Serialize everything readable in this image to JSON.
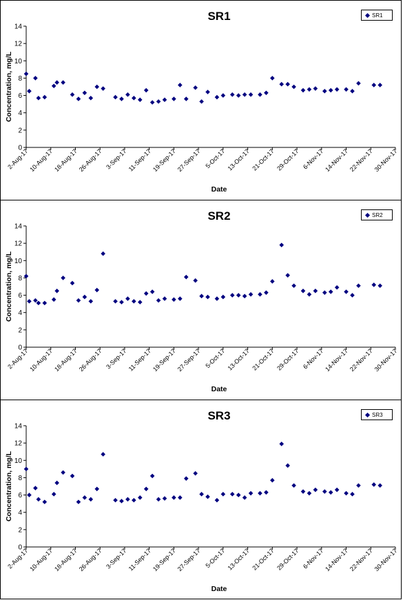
{
  "chart_data": [
    {
      "type": "scatter",
      "title": "SR1",
      "xlabel": "Date",
      "ylabel": "Concentration, mg/L",
      "ylim": [
        0,
        14
      ],
      "yticks": [
        0,
        2,
        4,
        6,
        8,
        10,
        12,
        14
      ],
      "xlim": [
        "2017-08-02",
        "2017-11-30"
      ],
      "xtick_labels": [
        "2-Aug-17",
        "10-Aug-17",
        "18-Aug-17",
        "26-Aug-17",
        "3-Sep-17",
        "11-Sep-17",
        "19-Sep-17",
        "27-Sep-17",
        "5-Oct-17",
        "13-Oct-17",
        "21-Oct-17",
        "29-Oct-17",
        "6-Nov-17",
        "14-Nov-17",
        "22-Nov-17",
        "30-Nov-17"
      ],
      "legend": "top-right",
      "grid": false,
      "marker_color": "#000080",
      "series": [
        {
          "name": "SR1",
          "points": [
            [
              "2017-08-02",
              8.5
            ],
            [
              "2017-08-03",
              6.5
            ],
            [
              "2017-08-05",
              8.0
            ],
            [
              "2017-08-06",
              5.7
            ],
            [
              "2017-08-08",
              5.8
            ],
            [
              "2017-08-11",
              7.1
            ],
            [
              "2017-08-12",
              7.5
            ],
            [
              "2017-08-14",
              7.5
            ],
            [
              "2017-08-17",
              6.1
            ],
            [
              "2017-08-19",
              5.6
            ],
            [
              "2017-08-21",
              6.3
            ],
            [
              "2017-08-23",
              5.7
            ],
            [
              "2017-08-25",
              7.0
            ],
            [
              "2017-08-27",
              6.8
            ],
            [
              "2017-08-31",
              5.8
            ],
            [
              "2017-09-02",
              5.6
            ],
            [
              "2017-09-04",
              6.1
            ],
            [
              "2017-09-06",
              5.7
            ],
            [
              "2017-09-08",
              5.5
            ],
            [
              "2017-09-10",
              6.6
            ],
            [
              "2017-09-12",
              5.2
            ],
            [
              "2017-09-14",
              5.3
            ],
            [
              "2017-09-16",
              5.5
            ],
            [
              "2017-09-19",
              5.6
            ],
            [
              "2017-09-21",
              7.2
            ],
            [
              "2017-09-23",
              5.6
            ],
            [
              "2017-09-26",
              6.9
            ],
            [
              "2017-09-28",
              5.3
            ],
            [
              "2017-09-30",
              6.4
            ],
            [
              "2017-10-03",
              5.8
            ],
            [
              "2017-10-05",
              6.0
            ],
            [
              "2017-10-08",
              6.1
            ],
            [
              "2017-10-10",
              6.0
            ],
            [
              "2017-10-12",
              6.1
            ],
            [
              "2017-10-14",
              6.1
            ],
            [
              "2017-10-17",
              6.1
            ],
            [
              "2017-10-19",
              6.3
            ],
            [
              "2017-10-21",
              8.0
            ],
            [
              "2017-10-24",
              7.3
            ],
            [
              "2017-10-26",
              7.3
            ],
            [
              "2017-10-28",
              7.0
            ],
            [
              "2017-10-31",
              6.6
            ],
            [
              "2017-11-02",
              6.7
            ],
            [
              "2017-11-04",
              6.8
            ],
            [
              "2017-11-07",
              6.5
            ],
            [
              "2017-11-09",
              6.6
            ],
            [
              "2017-11-11",
              6.7
            ],
            [
              "2017-11-14",
              6.7
            ],
            [
              "2017-11-16",
              6.5
            ],
            [
              "2017-11-18",
              7.4
            ],
            [
              "2017-11-23",
              7.2
            ],
            [
              "2017-11-25",
              7.2
            ]
          ]
        }
      ]
    },
    {
      "type": "scatter",
      "title": "SR2",
      "xlabel": "Date",
      "ylabel": "Concentration, mg/L",
      "ylim": [
        0,
        14
      ],
      "yticks": [
        0,
        2,
        4,
        6,
        8,
        10,
        12,
        14
      ],
      "xlim": [
        "2017-08-02",
        "2017-11-30"
      ],
      "xtick_labels": [
        "2-Aug-17",
        "10-Aug-17",
        "18-Aug-17",
        "26-Aug-17",
        "3-Sep-17",
        "11-Sep-17",
        "19-Sep-17",
        "27-Sep-17",
        "5-Oct-17",
        "13-Oct-17",
        "21-Oct-17",
        "29-Oct-17",
        "6-Nov-17",
        "14-Nov-17",
        "22-Nov-17",
        "30-Nov-17"
      ],
      "legend": "top-right",
      "grid": false,
      "marker_color": "#000080",
      "series": [
        {
          "name": "SR2",
          "points": [
            [
              "2017-08-02",
              8.2
            ],
            [
              "2017-08-03",
              5.3
            ],
            [
              "2017-08-05",
              5.4
            ],
            [
              "2017-08-06",
              5.1
            ],
            [
              "2017-08-08",
              5.1
            ],
            [
              "2017-08-11",
              5.5
            ],
            [
              "2017-08-12",
              6.5
            ],
            [
              "2017-08-14",
              8.0
            ],
            [
              "2017-08-17",
              7.4
            ],
            [
              "2017-08-19",
              5.4
            ],
            [
              "2017-08-21",
              5.8
            ],
            [
              "2017-08-23",
              5.3
            ],
            [
              "2017-08-25",
              6.6
            ],
            [
              "2017-08-27",
              10.8
            ],
            [
              "2017-08-31",
              5.3
            ],
            [
              "2017-09-02",
              5.2
            ],
            [
              "2017-09-04",
              5.6
            ],
            [
              "2017-09-06",
              5.3
            ],
            [
              "2017-09-08",
              5.2
            ],
            [
              "2017-09-10",
              6.2
            ],
            [
              "2017-09-12",
              6.4
            ],
            [
              "2017-09-14",
              5.4
            ],
            [
              "2017-09-16",
              5.6
            ],
            [
              "2017-09-19",
              5.5
            ],
            [
              "2017-09-21",
              5.6
            ],
            [
              "2017-09-23",
              8.1
            ],
            [
              "2017-09-26",
              7.7
            ],
            [
              "2017-09-28",
              5.9
            ],
            [
              "2017-09-30",
              5.8
            ],
            [
              "2017-10-03",
              5.6
            ],
            [
              "2017-10-05",
              5.8
            ],
            [
              "2017-10-08",
              6.0
            ],
            [
              "2017-10-10",
              6.0
            ],
            [
              "2017-10-12",
              5.9
            ],
            [
              "2017-10-14",
              6.1
            ],
            [
              "2017-10-17",
              6.1
            ],
            [
              "2017-10-19",
              6.3
            ],
            [
              "2017-10-21",
              7.6
            ],
            [
              "2017-10-24",
              11.8
            ],
            [
              "2017-10-26",
              8.3
            ],
            [
              "2017-10-28",
              7.1
            ],
            [
              "2017-10-31",
              6.5
            ],
            [
              "2017-11-02",
              6.1
            ],
            [
              "2017-11-04",
              6.5
            ],
            [
              "2017-11-07",
              6.3
            ],
            [
              "2017-11-09",
              6.4
            ],
            [
              "2017-11-11",
              6.9
            ],
            [
              "2017-11-14",
              6.4
            ],
            [
              "2017-11-16",
              6.0
            ],
            [
              "2017-11-18",
              7.1
            ],
            [
              "2017-11-23",
              7.2
            ],
            [
              "2017-11-25",
              7.1
            ]
          ]
        }
      ]
    },
    {
      "type": "scatter",
      "title": "SR3",
      "xlabel": "Date",
      "ylabel": "Concentration, mg/L",
      "ylim": [
        0,
        14
      ],
      "yticks": [
        0,
        2,
        4,
        6,
        8,
        10,
        12,
        14
      ],
      "xlim": [
        "2017-08-02",
        "2017-11-30"
      ],
      "xtick_labels": [
        "2-Aug-17",
        "10-Aug-17",
        "18-Aug-17",
        "26-Aug-17",
        "3-Sep-17",
        "11-Sep-17",
        "19-Sep-17",
        "27-Sep-17",
        "5-Oct-17",
        "13-Oct-17",
        "21-Oct-17",
        "29-Oct-17",
        "6-Nov-17",
        "14-Nov-17",
        "22-Nov-17",
        "30-Nov-17"
      ],
      "legend": "top-right",
      "grid": false,
      "marker_color": "#000080",
      "series": [
        {
          "name": "SR3",
          "points": [
            [
              "2017-08-02",
              9.0
            ],
            [
              "2017-08-03",
              6.0
            ],
            [
              "2017-08-05",
              6.8
            ],
            [
              "2017-08-06",
              5.5
            ],
            [
              "2017-08-08",
              5.2
            ],
            [
              "2017-08-11",
              6.1
            ],
            [
              "2017-08-12",
              7.4
            ],
            [
              "2017-08-14",
              8.6
            ],
            [
              "2017-08-17",
              8.2
            ],
            [
              "2017-08-19",
              5.2
            ],
            [
              "2017-08-21",
              5.7
            ],
            [
              "2017-08-23",
              5.5
            ],
            [
              "2017-08-25",
              6.7
            ],
            [
              "2017-08-27",
              10.7
            ],
            [
              "2017-08-31",
              5.4
            ],
            [
              "2017-09-02",
              5.3
            ],
            [
              "2017-09-04",
              5.5
            ],
            [
              "2017-09-06",
              5.4
            ],
            [
              "2017-09-08",
              5.7
            ],
            [
              "2017-09-10",
              6.7
            ],
            [
              "2017-09-12",
              8.2
            ],
            [
              "2017-09-14",
              5.5
            ],
            [
              "2017-09-16",
              5.6
            ],
            [
              "2017-09-19",
              5.7
            ],
            [
              "2017-09-21",
              5.7
            ],
            [
              "2017-09-23",
              7.9
            ],
            [
              "2017-09-26",
              8.5
            ],
            [
              "2017-09-28",
              6.1
            ],
            [
              "2017-09-30",
              5.8
            ],
            [
              "2017-10-03",
              5.4
            ],
            [
              "2017-10-05",
              6.1
            ],
            [
              "2017-10-08",
              6.1
            ],
            [
              "2017-10-10",
              6.0
            ],
            [
              "2017-10-12",
              5.7
            ],
            [
              "2017-10-14",
              6.2
            ],
            [
              "2017-10-17",
              6.2
            ],
            [
              "2017-10-19",
              6.3
            ],
            [
              "2017-10-21",
              7.7
            ],
            [
              "2017-10-24",
              11.9
            ],
            [
              "2017-10-26",
              9.4
            ],
            [
              "2017-10-28",
              7.1
            ],
            [
              "2017-10-31",
              6.4
            ],
            [
              "2017-11-02",
              6.2
            ],
            [
              "2017-11-04",
              6.6
            ],
            [
              "2017-11-07",
              6.4
            ],
            [
              "2017-11-09",
              6.3
            ],
            [
              "2017-11-11",
              6.6
            ],
            [
              "2017-11-14",
              6.2
            ],
            [
              "2017-11-16",
              6.1
            ],
            [
              "2017-11-18",
              7.1
            ],
            [
              "2017-11-23",
              7.2
            ],
            [
              "2017-11-25",
              7.1
            ]
          ]
        }
      ]
    }
  ]
}
